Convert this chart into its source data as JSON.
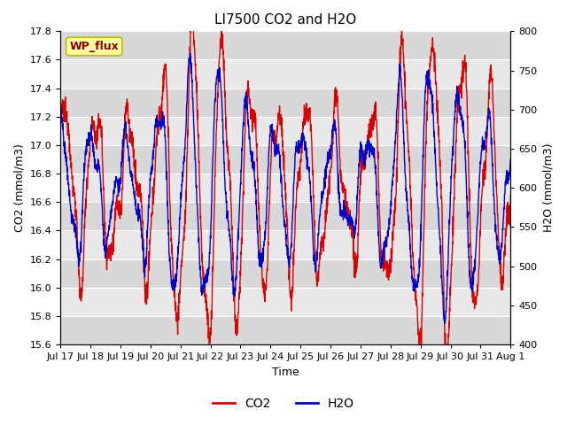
{
  "title": "LI7500 CO2 and H2O",
  "xlabel": "Time",
  "ylabel_left": "CO2 (mmol/m3)",
  "ylabel_right": "H2O (mmol/m3)",
  "co2_ylim": [
    15.6,
    17.8
  ],
  "h2o_ylim": [
    400,
    800
  ],
  "co2_yticks": [
    15.6,
    15.8,
    16.0,
    16.2,
    16.4,
    16.6,
    16.8,
    17.0,
    17.2,
    17.4,
    17.6,
    17.8
  ],
  "h2o_yticks": [
    400,
    450,
    500,
    550,
    600,
    650,
    700,
    750,
    800
  ],
  "xtick_labels": [
    "Jul 17",
    "Jul 18",
    "Jul 19",
    "Jul 20",
    "Jul 21",
    "Jul 22",
    "Jul 23",
    "Jul 24",
    "Jul 25",
    "Jul 26",
    "Jul 27",
    "Jul 28",
    "Jul 29",
    "Jul 30",
    "Jul 31",
    "Aug 1"
  ],
  "co2_color": "#DD0000",
  "h2o_color": "#0000CC",
  "line_width": 1.0,
  "background_color": "#ffffff",
  "plot_bg_light": "#e8e8e8",
  "plot_bg_dark": "#d8d8d8",
  "annotation_text": "WP_flux",
  "annotation_bg": "#FFFFA0",
  "annotation_border": "#BBBB00",
  "legend_co2": "CO2",
  "legend_h2o": "H2O",
  "title_fontsize": 11,
  "axis_fontsize": 9,
  "tick_fontsize": 8,
  "figsize": [
    6.4,
    4.8
  ],
  "dpi": 100
}
